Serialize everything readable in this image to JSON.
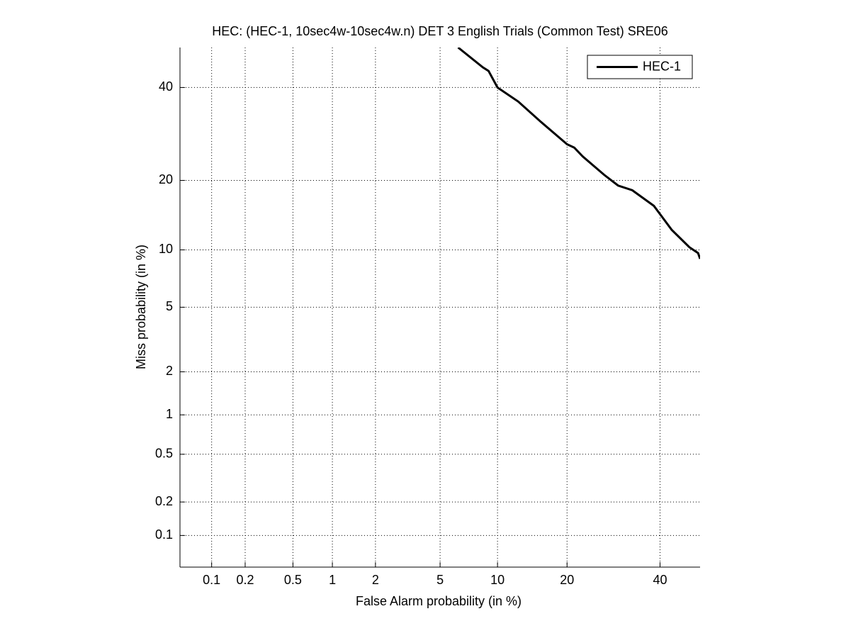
{
  "chart_data": {
    "type": "line",
    "title": "HEC: (HEC-1, 10sec4w-10sec4w.n) DET 3 English Trials (Common Test) SRE06",
    "x_label": "False Alarm probability (in %)",
    "y_label": "Miss probability (in %)",
    "scale": "probit",
    "grid": true,
    "legend": "upper right",
    "xlim": [
      0.05,
      50
    ],
    "ylim": [
      0.05,
      50
    ],
    "xticks": [
      0.1,
      0.2,
      0.5,
      1,
      2,
      5,
      10,
      20,
      40
    ],
    "yticks": [
      0.1,
      0.2,
      0.5,
      1,
      2,
      5,
      10,
      20,
      40
    ],
    "x": [
      6.29,
      8.47,
      9.04,
      10,
      12.5,
      15.6,
      20,
      21.3,
      22.9,
      27.2,
      30.2,
      33.4,
      38.5,
      42.9,
      47.3,
      49.5,
      50
    ],
    "series": [
      {
        "name": "HEC-1",
        "color": "#000000",
        "values": [
          50,
          45.0,
          44.1,
          40,
          36.6,
          32.0,
          27.0,
          26.3,
          24.5,
          21.0,
          19.1,
          18.3,
          15.8,
          12.4,
          10.3,
          9.65,
          9.04
        ]
      }
    ]
  }
}
